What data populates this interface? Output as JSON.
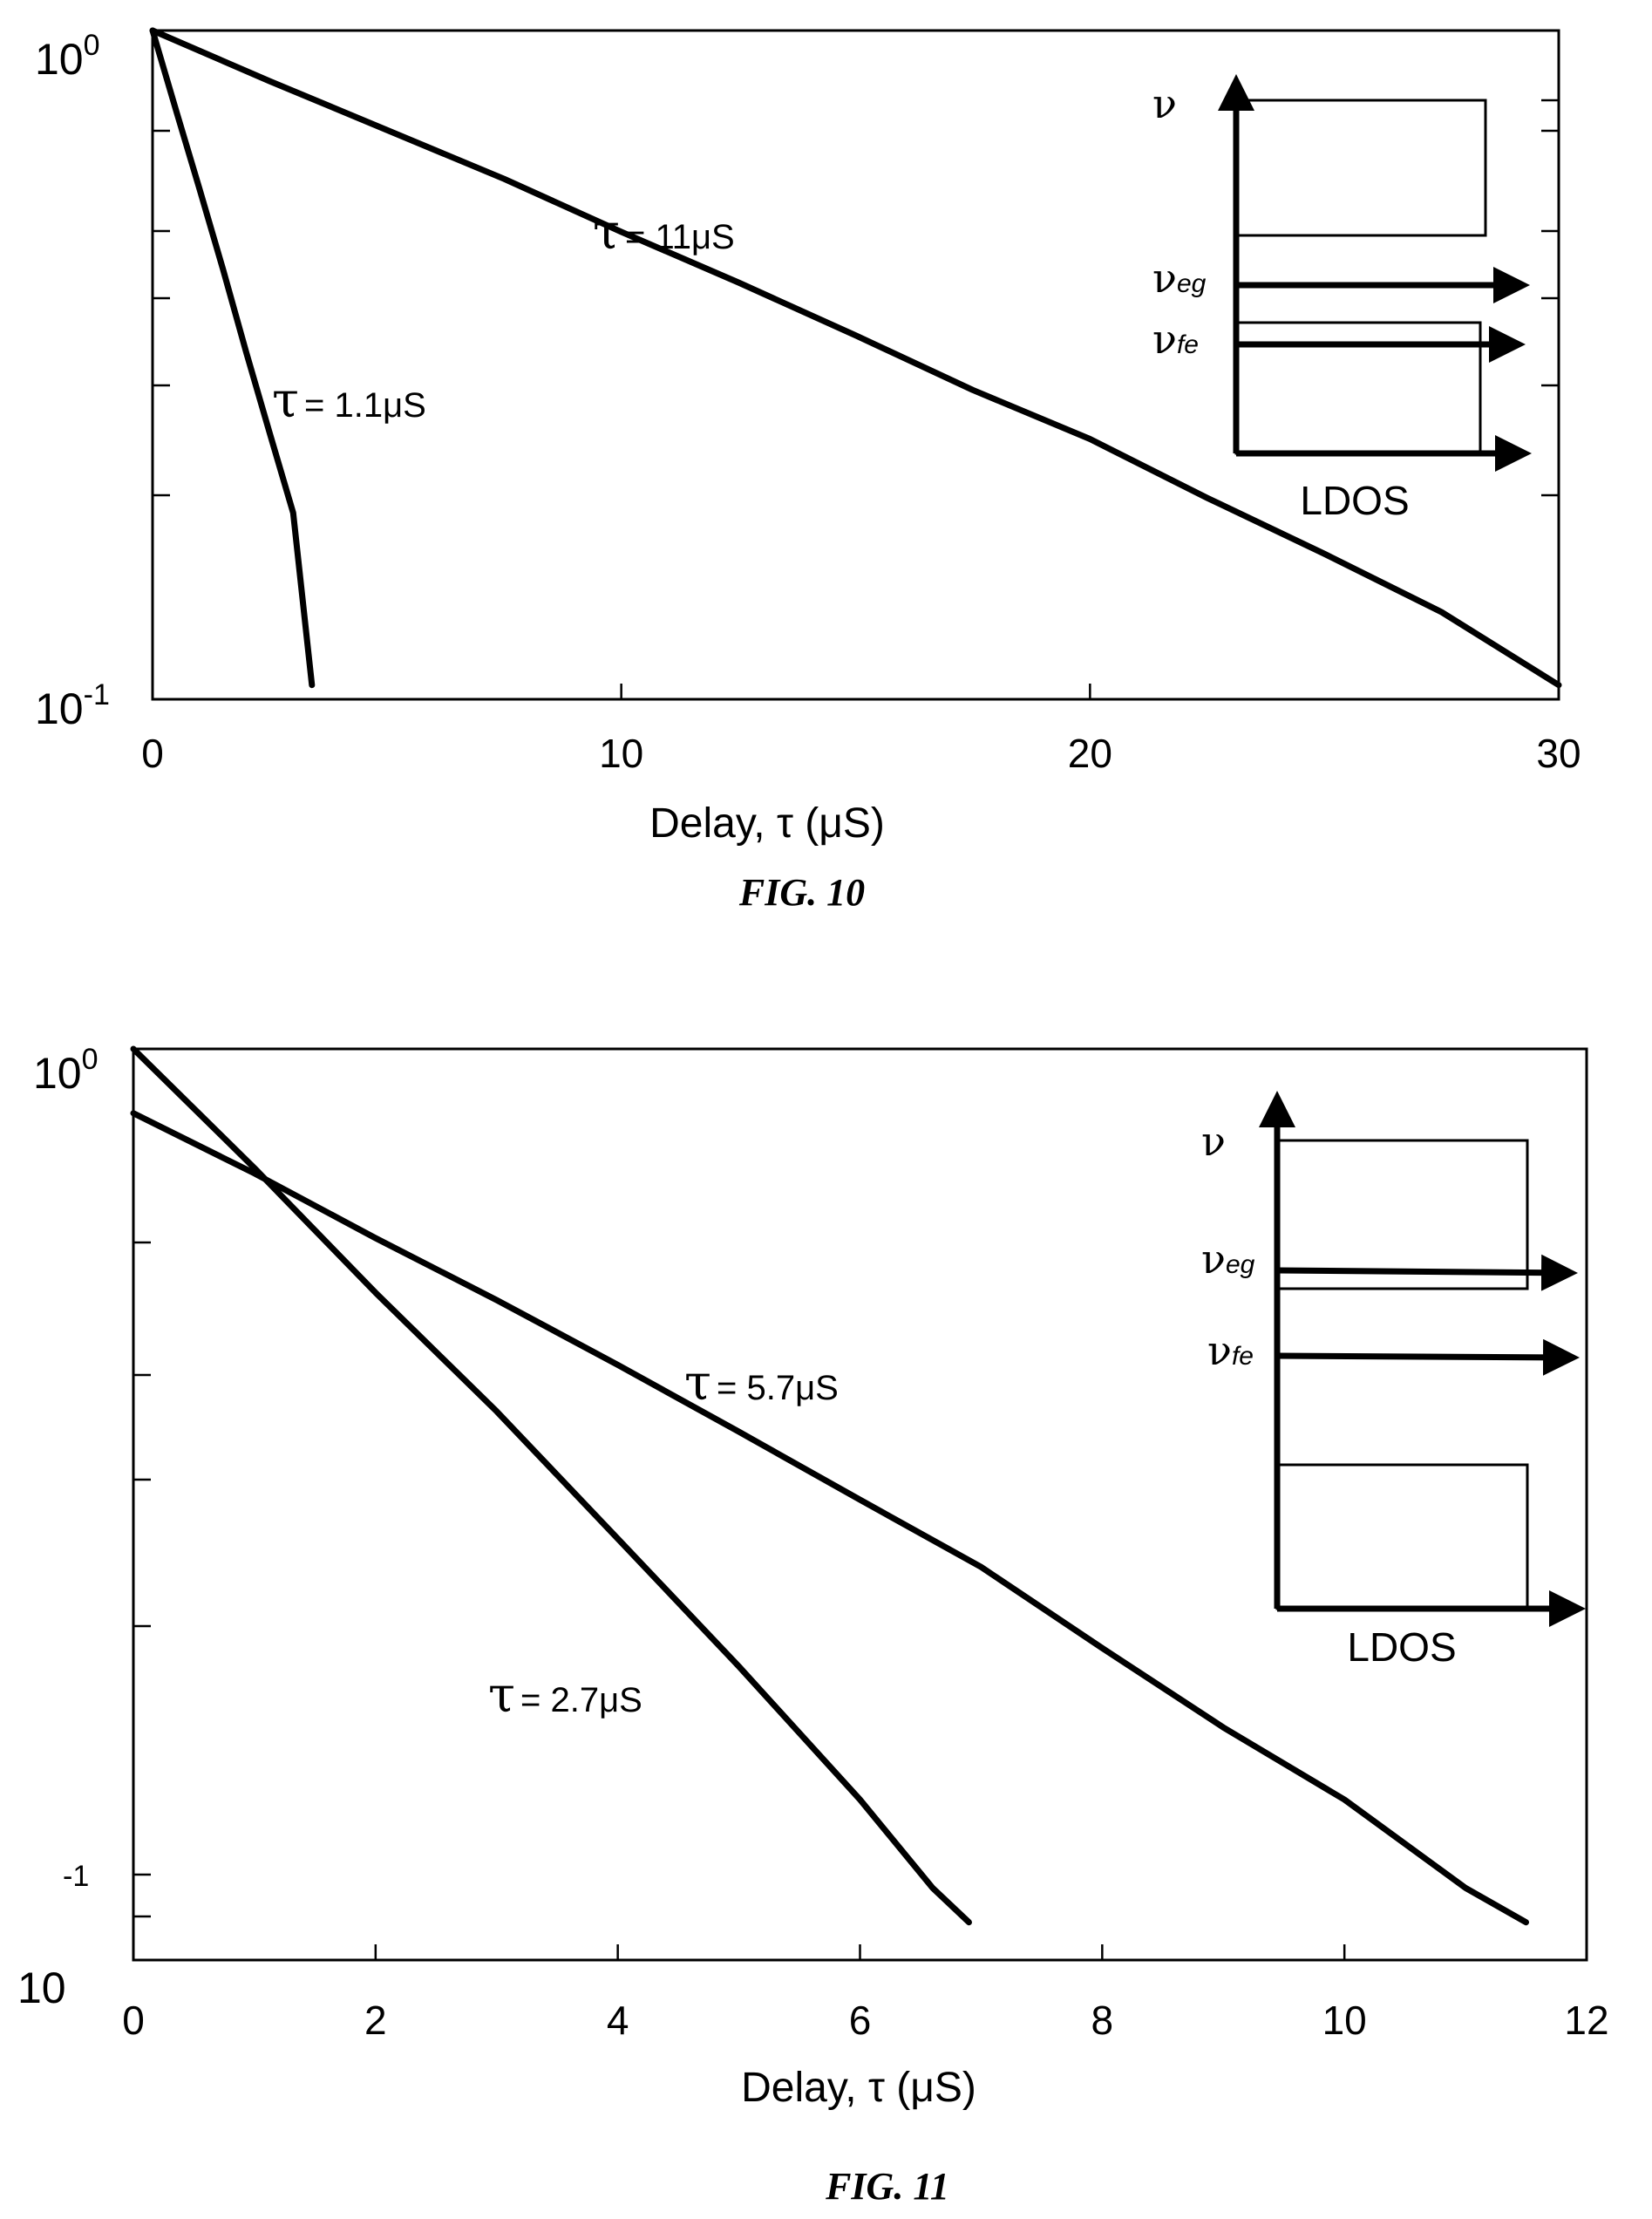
{
  "chart_data": [
    {
      "type": "line",
      "caption": "FIG. 10",
      "xlabel": "Delay, τ (μS)",
      "ylabel": "",
      "xscale": "linear",
      "yscale": "log",
      "xlim": [
        0,
        30
      ],
      "ylim": [
        0.1,
        1
      ],
      "xticks": [
        0,
        10,
        20,
        30
      ],
      "xtick_labels": [
        "0",
        "10",
        "20",
        "30"
      ],
      "ytick_labels": [
        {
          "base": "10",
          "exp": "0",
          "value": 1
        },
        {
          "base": "10",
          "exp": "-1",
          "value": 0.1
        }
      ],
      "grid": false,
      "series": [
        {
          "name": "τ = 1.1μS",
          "tau_us": 1.1,
          "label_text": "= 1.1μS",
          "x": [
            0,
            0.5,
            1,
            1.5,
            2,
            2.5,
            3,
            3.4
          ],
          "y": [
            1.0,
            0.76,
            0.58,
            0.44,
            0.33,
            0.25,
            0.19,
            0.105
          ]
        },
        {
          "name": "τ = 11μS",
          "tau_us": 11,
          "label_text": "= 11μS",
          "x": [
            0,
            2.5,
            5,
            7.5,
            10,
            12.5,
            15,
            17.5,
            20,
            22.5,
            25,
            27.5,
            30
          ],
          "y": [
            1.0,
            0.84,
            0.71,
            0.6,
            0.5,
            0.42,
            0.35,
            0.29,
            0.245,
            0.2,
            0.165,
            0.135,
            0.105
          ]
        }
      ],
      "inset": {
        "axis_label": "LDOS",
        "levels": [
          "ν",
          "νeg",
          "νfe"
        ],
        "level_base": "ν",
        "level_subs": [
          "",
          "eg",
          "fe"
        ]
      }
    },
    {
      "type": "line",
      "caption": "FIG. 11",
      "xlabel": "Delay, τ (μS)",
      "ylabel": "",
      "xscale": "linear",
      "yscale": "log",
      "xlim": [
        0,
        12
      ],
      "ylim": [
        0.1,
        1
      ],
      "xticks": [
        0,
        2,
        4,
        6,
        8,
        10,
        12
      ],
      "xtick_labels": [
        "0",
        "2",
        "4",
        "6",
        "8",
        "10",
        "12"
      ],
      "ytick_labels": [
        {
          "base": "10",
          "exp": "0",
          "value": 1
        },
        {
          "base": "10",
          "exp": "-1",
          "value": 0.1
        }
      ],
      "grid": false,
      "series": [
        {
          "name": "τ = 2.7μS",
          "tau_us": 2.7,
          "label_text": "= 2.7μS",
          "x": [
            0,
            1,
            2,
            3,
            4,
            5,
            6,
            6.6,
            6.9
          ],
          "y": [
            1.0,
            0.74,
            0.54,
            0.4,
            0.29,
            0.21,
            0.15,
            0.12,
            0.11
          ]
        },
        {
          "name": "τ = 5.7μS",
          "tau_us": 5.7,
          "label_text": "= 5.7μS",
          "x": [
            0,
            1,
            2,
            3,
            4,
            5,
            6,
            7,
            8,
            9,
            10,
            11,
            11.5
          ],
          "y": [
            0.85,
            0.73,
            0.62,
            0.53,
            0.45,
            0.38,
            0.32,
            0.27,
            0.22,
            0.18,
            0.15,
            0.12,
            0.11
          ]
        }
      ],
      "inset": {
        "axis_label": "LDOS",
        "levels": [
          "ν",
          "νeg",
          "νfe"
        ],
        "level_base": "ν",
        "level_subs": [
          "",
          "eg",
          "fe"
        ]
      }
    }
  ]
}
